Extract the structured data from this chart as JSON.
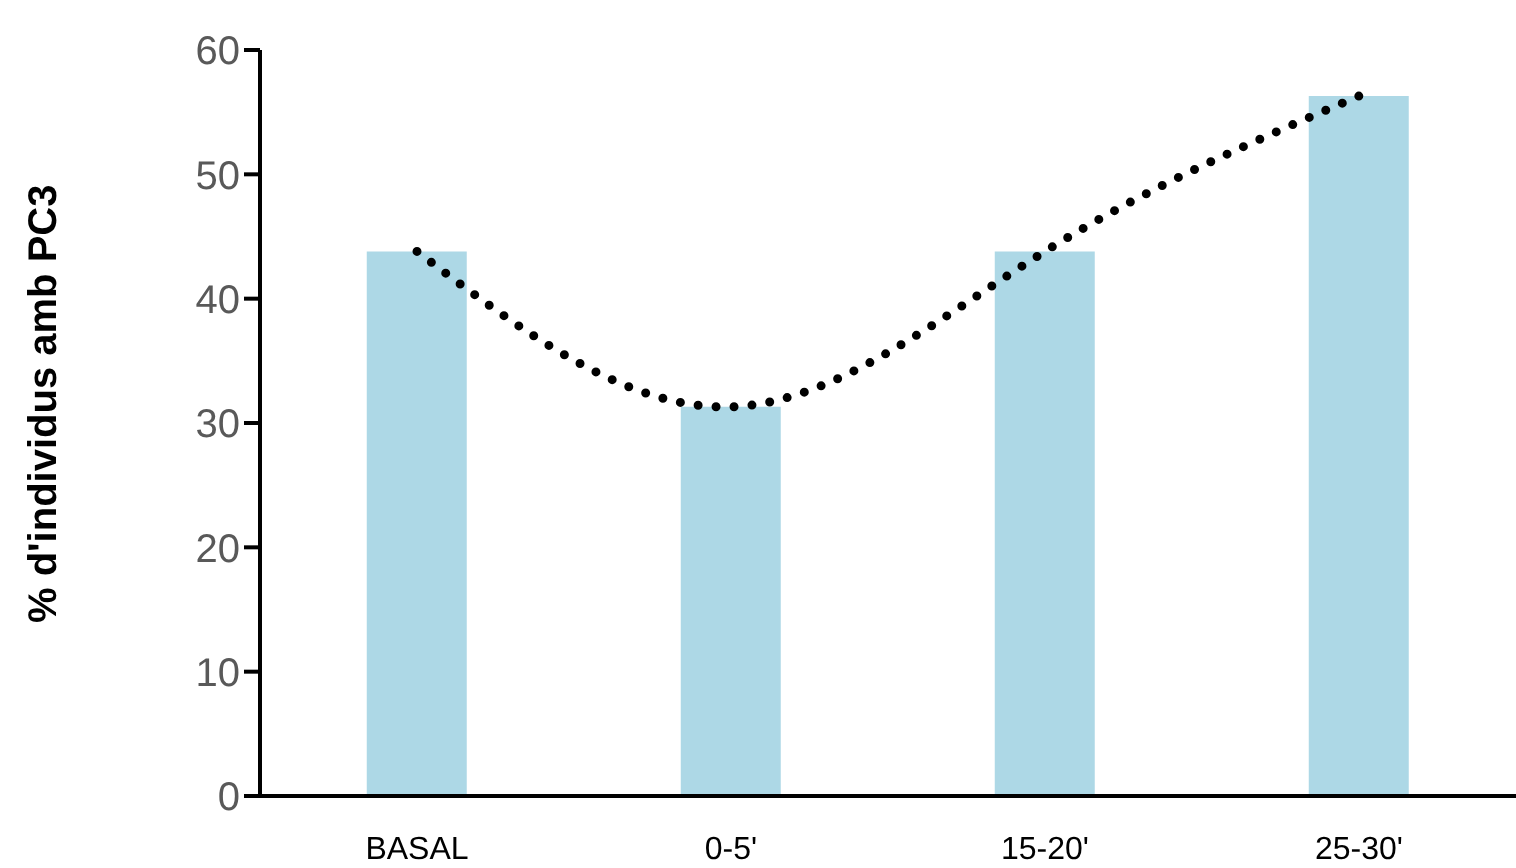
{
  "chart_data": {
    "type": "bar",
    "ylabel": "% d'individus amb PC3",
    "categories": [
      "BASAL",
      "0-5'",
      "15-20'",
      "25-30'"
    ],
    "series": [
      {
        "color": "#add8e6",
        "values": [
          43.8,
          31.3,
          43.8,
          56.3
        ]
      },
      {
        "type": "line",
        "color": "#000000",
        "line_style": "dotted",
        "marker": "none",
        "values": [
          43.8,
          31.3,
          43.8,
          56.3
        ]
      }
    ],
    "ylim": [
      0,
      60
    ],
    "yticks": [
      0,
      10,
      20,
      30,
      40,
      50,
      60
    ],
    "grid": false,
    "legend": false
  }
}
